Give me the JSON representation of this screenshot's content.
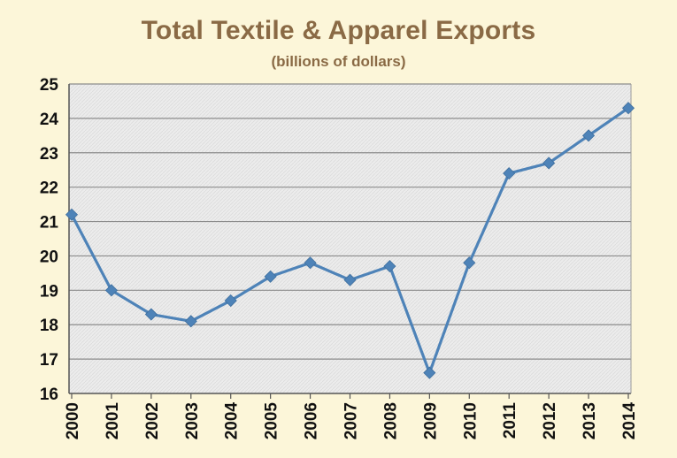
{
  "colors": {
    "background": "#fcf6d9",
    "title": "#8a6a45",
    "plot_area": "#ececec",
    "grid": "#8c8c8c",
    "series": "#4e83b8",
    "axis_text": "#111111"
  },
  "chart_data": {
    "type": "line",
    "title": "Total Textile & Apparel Exports",
    "subtitle": "(billions of dollars)",
    "xlabel": "",
    "ylabel": "",
    "ylim": [
      16,
      25
    ],
    "yticks": [
      "16",
      "17",
      "18",
      "19",
      "20",
      "21",
      "22",
      "23",
      "24",
      "25"
    ],
    "grid": true,
    "legend": "none",
    "categories": [
      "2000",
      "2001",
      "2002",
      "2003",
      "2004",
      "2005",
      "2006",
      "2007",
      "2008",
      "2009",
      "2010",
      "2011",
      "2012",
      "2013",
      "2014"
    ],
    "series": [
      {
        "name": "Total Textile & Apparel Exports",
        "values": [
          21.2,
          19.0,
          18.3,
          18.1,
          18.7,
          19.4,
          19.8,
          19.3,
          19.7,
          16.6,
          19.8,
          22.4,
          22.7,
          23.5,
          24.3
        ]
      }
    ]
  }
}
